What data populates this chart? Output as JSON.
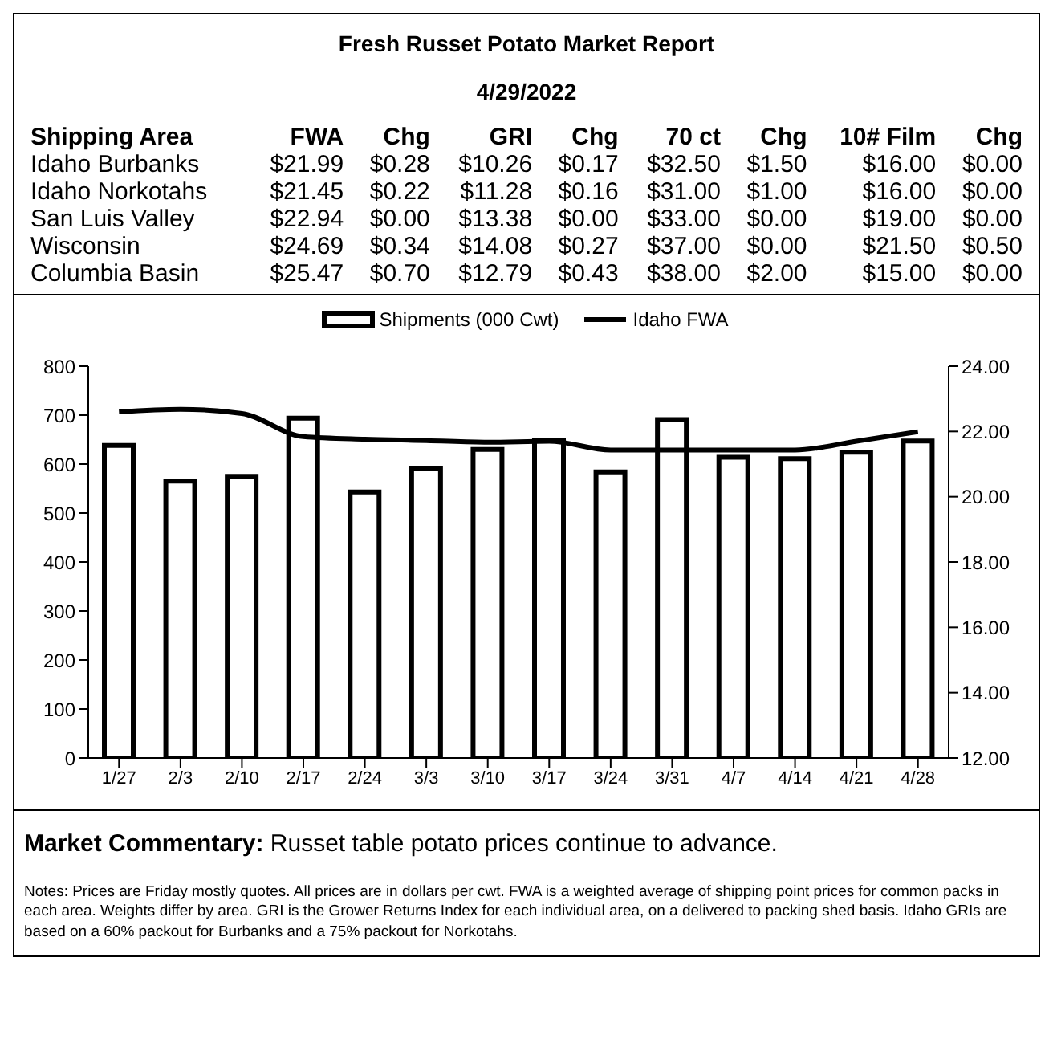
{
  "chart_data": [
    {
      "type": "other",
      "title": "Fresh Russet Potato Market Report",
      "subtitle": "4/29/2022",
      "categories": [
        "Shipping Area",
        "FWA",
        "Chg",
        "GRI",
        "Chg",
        "70 ct",
        "Chg",
        "10# Film",
        "Chg"
      ],
      "annotations": [
        "Idaho Burbanks",
        "$21.99",
        "$0.28",
        "$10.26",
        "$0.17",
        "$32.50",
        "$1.50",
        "$16.00",
        "$0.00",
        "Idaho Norkotahs",
        "$21.45",
        "$0.22",
        "$11.28",
        "$0.16",
        "$31.00",
        "$1.00",
        "$16.00",
        "$0.00",
        "San Luis Valley",
        "$22.94",
        "$0.00",
        "$13.38",
        "$0.00",
        "$33.00",
        "$0.00",
        "$19.00",
        "$0.00",
        "Wisconsin",
        "$24.69",
        "$0.34",
        "$14.08",
        "$0.27",
        "$37.00",
        "$0.00",
        "$21.50",
        "$0.50",
        "Columbia Basin",
        "$25.47",
        "$0.70",
        "$12.79",
        "$0.43",
        "$38.00",
        "$2.00",
        "$15.00",
        "$0.00"
      ]
    },
    {
      "type": "bar",
      "categories": [
        "1/27",
        "2/3",
        "2/10",
        "2/17",
        "2/24",
        "3/3",
        "3/10",
        "3/17",
        "3/24",
        "3/31",
        "4/7",
        "4/14",
        "4/21",
        "4/28"
      ],
      "series": [
        {
          "name": "Shipments (000 Cwt)",
          "type": "bar",
          "color": "#000000",
          "values": [
            638,
            565,
            575,
            694,
            543,
            592,
            630,
            648,
            584,
            691,
            614,
            611,
            624,
            647
          ]
        },
        {
          "name": "Idaho FWA",
          "type": "line",
          "axis": "y2",
          "color": "#000000",
          "values": [
            22.6,
            22.68,
            22.55,
            21.84,
            21.76,
            21.72,
            21.67,
            21.7,
            21.43,
            21.43,
            21.43,
            21.43,
            21.7,
            21.99
          ]
        }
      ],
      "ylim": [
        0,
        800
      ],
      "yticks": [
        0,
        100,
        200,
        300,
        400,
        500,
        600,
        700,
        800
      ],
      "y2lim": [
        12,
        24
      ],
      "y2ticks": [
        {
          "value": 12,
          "label": "12.00"
        },
        {
          "value": 14,
          "label": "14.00"
        },
        {
          "value": 16,
          "label": "16.00"
        },
        {
          "value": 18,
          "label": "18.00"
        },
        {
          "value": 20,
          "label": "20.00"
        },
        {
          "value": 22,
          "label": "22.00"
        },
        {
          "value": 24,
          "label": "24.00"
        }
      ],
      "legend": "top",
      "grid": false,
      "marker": "none",
      "line_style": "solid",
      "annotations": [
        "Market Commentary:",
        "Russet table potato prices continue to advance.",
        "Notes: Prices are Friday mostly quotes. All prices are in dollars per cwt. FWA is a weighted average of shipping point prices for  common packs in each area. Weights differ by area. GRI is the Grower Returns Index for each individual area, on a delivered to packing shed basis. Idaho GRIs are based on a 60% packout for Burbanks and a 75% packout for Norkotahs."
      ]
    }
  ]
}
